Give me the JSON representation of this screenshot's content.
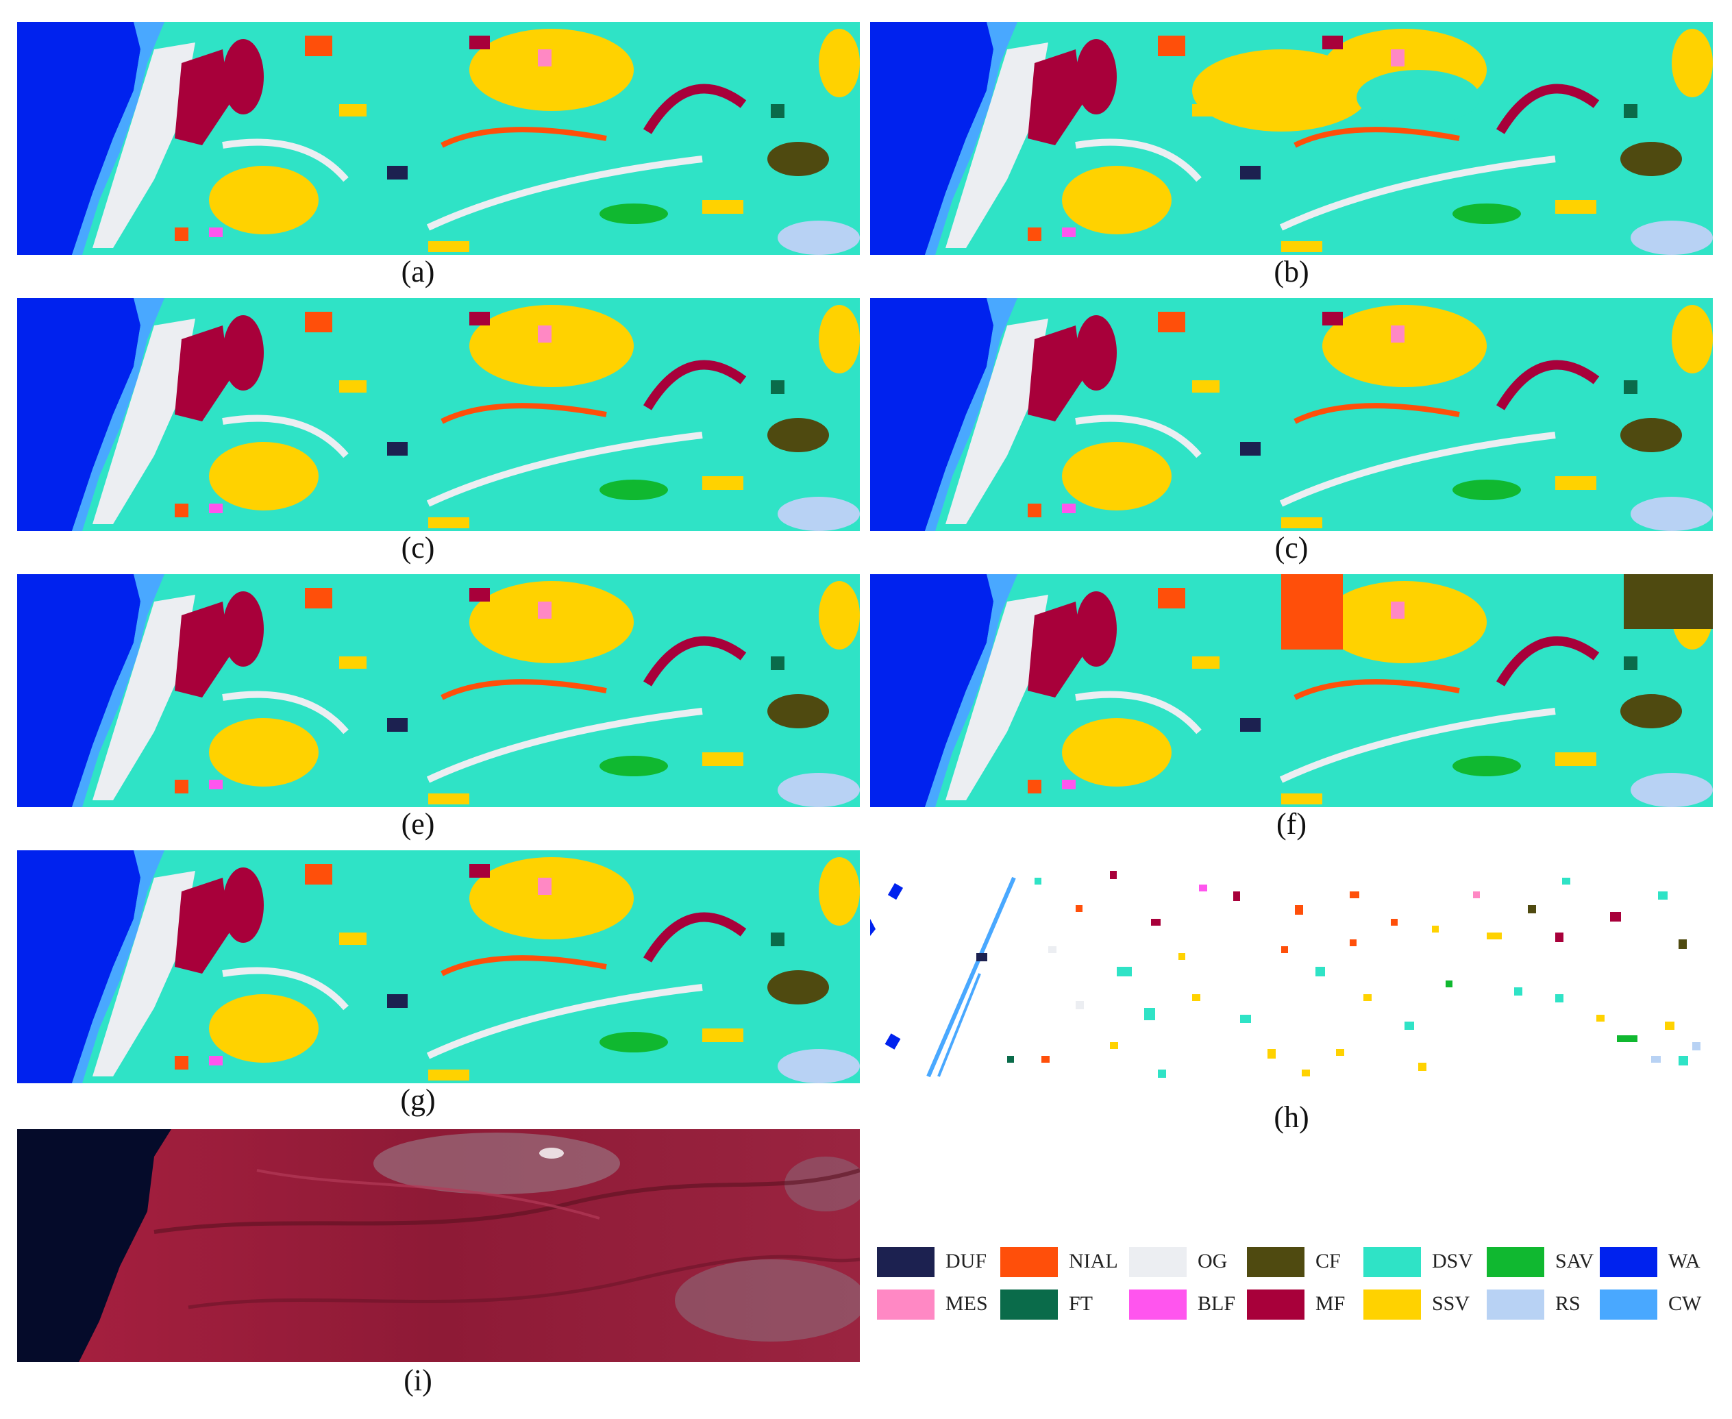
{
  "figure": {
    "panels": [
      {
        "id": "a",
        "caption": "(a)"
      },
      {
        "id": "b",
        "caption": "(b)"
      },
      {
        "id": "c1",
        "caption": "(c)"
      },
      {
        "id": "c2",
        "caption": "(c)"
      },
      {
        "id": "e",
        "caption": "(e)"
      },
      {
        "id": "f",
        "caption": "(f)"
      },
      {
        "id": "g",
        "caption": "(g)"
      },
      {
        "id": "h",
        "caption": "(h)"
      },
      {
        "id": "i",
        "caption": "(i)"
      }
    ],
    "legend": [
      {
        "code": "DUF",
        "color": "#1c2150"
      },
      {
        "code": "NIAL",
        "color": "#ff4f0a"
      },
      {
        "code": "OG",
        "color": "#eceef2"
      },
      {
        "code": "CF",
        "color": "#4f4a10"
      },
      {
        "code": "DSV",
        "color": "#2fe3c6"
      },
      {
        "code": "SAV",
        "color": "#10b830"
      },
      {
        "code": "WA",
        "color": "#0022ee"
      },
      {
        "code": "MES",
        "color": "#ff88c4"
      },
      {
        "code": "FT",
        "color": "#0a6b4a"
      },
      {
        "code": "BLF",
        "color": "#ff55ee"
      },
      {
        "code": "MF",
        "color": "#a8003a"
      },
      {
        "code": "SSV",
        "color": "#ffd200"
      },
      {
        "code": "RS",
        "color": "#b8d2f4"
      },
      {
        "code": "CW",
        "color": "#49a8ff"
      }
    ]
  }
}
